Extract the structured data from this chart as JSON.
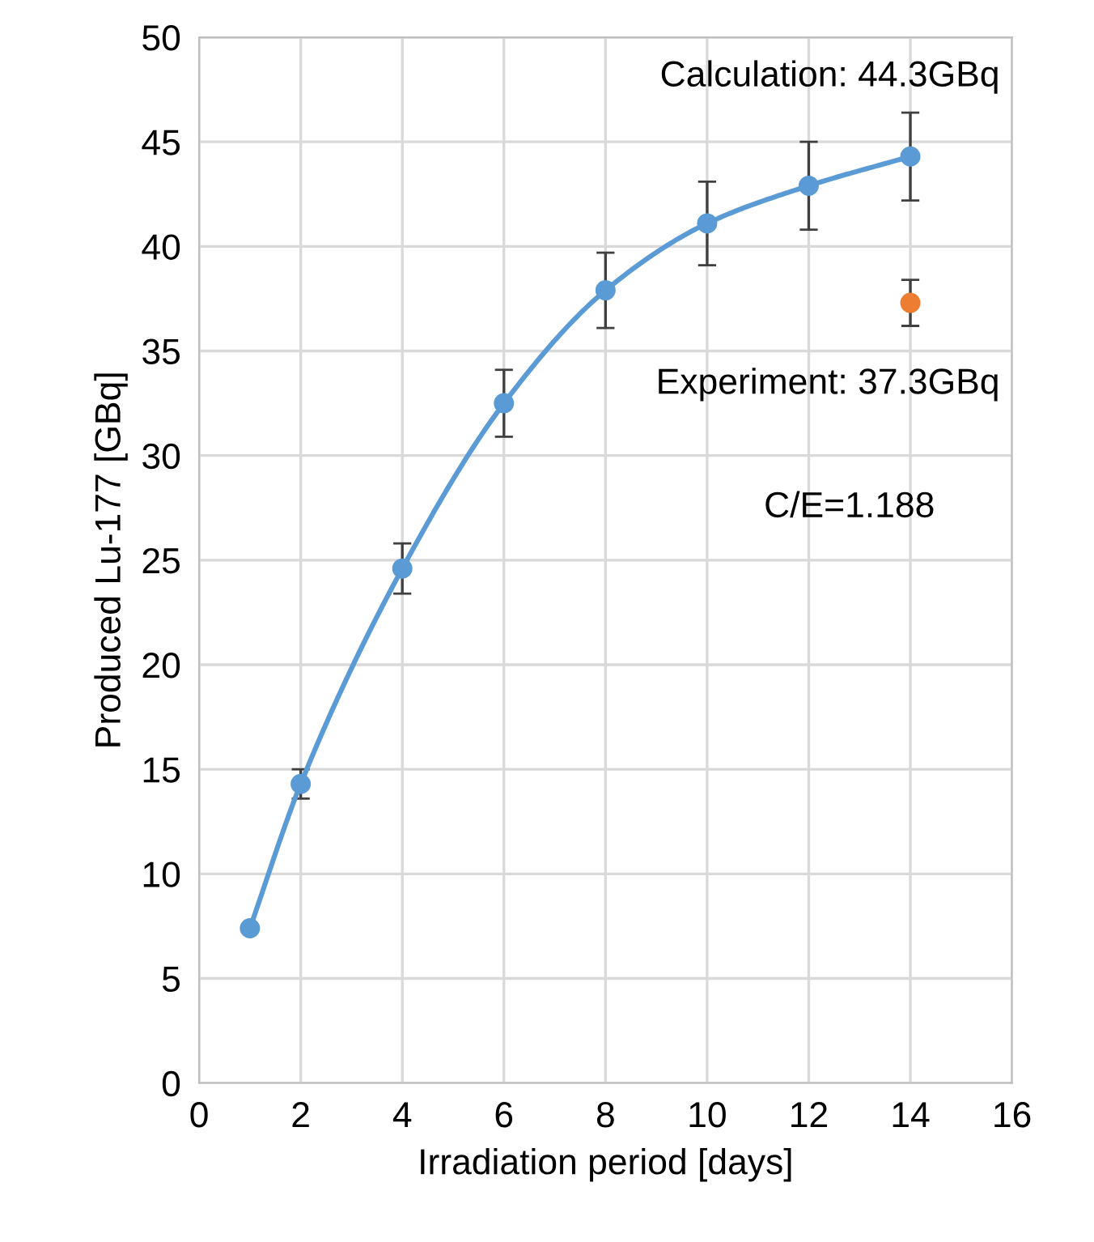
{
  "chart_data": {
    "type": "line",
    "xlabel": "Irradiation period [days]",
    "ylabel": "Produced Lu-177 [GBq]",
    "x": [
      1,
      2,
      4,
      6,
      8,
      10,
      12,
      14
    ],
    "series": [
      {
        "color": "#5b9bd5",
        "values": [
          7.4,
          14.3,
          24.6,
          32.5,
          37.9,
          41.1,
          42.9,
          44.3
        ],
        "errors": [
          null,
          0.7,
          1.2,
          1.6,
          1.8,
          2.0,
          2.1,
          2.1
        ]
      },
      {
        "type": "scatter",
        "color": "#ed7d31",
        "x": [
          14
        ],
        "values": [
          37.3
        ],
        "errors": [
          1.1
        ]
      }
    ],
    "annotations": [
      "Calculation: 44.3GBq",
      "Experiment: 37.3GBq",
      "C/E=1.188"
    ],
    "xlim": [
      0,
      16
    ],
    "xticks": [
      0,
      2,
      4,
      6,
      8,
      10,
      12,
      14,
      16
    ],
    "ylim": [
      0,
      50
    ],
    "yticks": [
      0,
      5,
      10,
      15,
      20,
      25,
      30,
      35,
      40,
      45,
      50
    ],
    "grid": true,
    "marker": "circle",
    "line_style": "solid"
  }
}
